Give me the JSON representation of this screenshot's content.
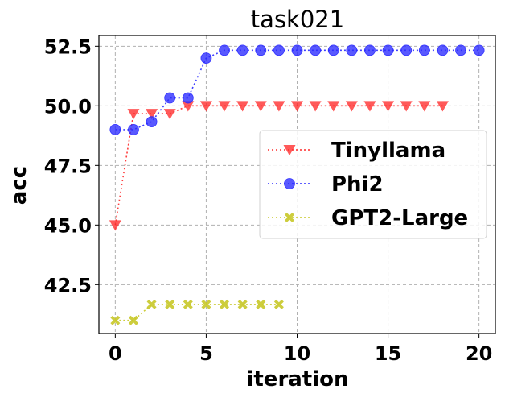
{
  "chart_data": {
    "type": "line",
    "title": "task021",
    "xlabel": "iteration",
    "ylabel": "acc",
    "xlim": [
      -0.9,
      20.9
    ],
    "ylim": [
      40.45,
      52.95
    ],
    "xticks": [
      0,
      5,
      10,
      15,
      20
    ],
    "yticks": [
      42.5,
      45.0,
      47.5,
      50.0,
      52.5
    ],
    "xtick_labels": [
      "0",
      "5",
      "10",
      "15",
      "20"
    ],
    "ytick_labels": [
      "42.5",
      "45.0",
      "47.5",
      "50.0",
      "52.5"
    ],
    "grid": true,
    "legend_position": "center-right",
    "series": [
      {
        "name": "Tinyllama",
        "color": "#ff2a2a",
        "marker": "triangle-down",
        "x": [
          0,
          1,
          2,
          3,
          4,
          5,
          6,
          7,
          8,
          9,
          10,
          11,
          12,
          13,
          14,
          15,
          16,
          17,
          18
        ],
        "y": [
          45.0,
          49.67,
          49.67,
          49.67,
          50.0,
          50.0,
          50.0,
          50.0,
          50.0,
          50.0,
          50.0,
          50.0,
          50.0,
          50.0,
          50.0,
          50.0,
          50.0,
          50.0,
          50.0
        ]
      },
      {
        "name": "Phi2",
        "color": "#2a2aff",
        "marker": "circle",
        "x": [
          0,
          1,
          2,
          3,
          4,
          5,
          6,
          7,
          8,
          9,
          10,
          11,
          12,
          13,
          14,
          15,
          16,
          17,
          18,
          19,
          20
        ],
        "y": [
          49.0,
          49.0,
          49.33,
          50.33,
          50.33,
          52.0,
          52.33,
          52.33,
          52.33,
          52.33,
          52.33,
          52.33,
          52.33,
          52.33,
          52.33,
          52.33,
          52.33,
          52.33,
          52.33,
          52.33,
          52.33
        ]
      },
      {
        "name": "GPT2-Large",
        "color": "#c8c828",
        "marker": "x",
        "x": [
          0,
          1,
          2,
          3,
          4,
          5,
          6,
          7,
          8,
          9
        ],
        "y": [
          41.0,
          41.0,
          41.67,
          41.67,
          41.67,
          41.67,
          41.67,
          41.67,
          41.67,
          41.67
        ]
      }
    ]
  }
}
